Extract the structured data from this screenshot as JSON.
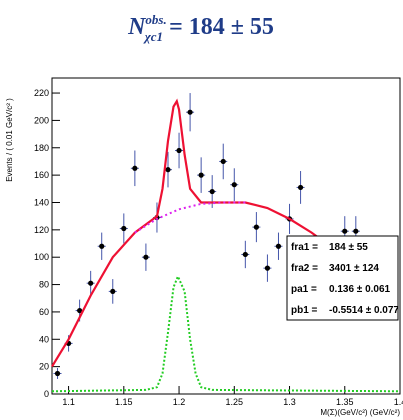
{
  "chart_data": {
    "type": "scatter",
    "title": {
      "base": "N",
      "sup": "obs.",
      "sub": "χc1",
      "rest": "= 184 ± 55"
    },
    "x_label": "M(Σ)(GeV/c²) (GeV/c²)",
    "y_label": "Events / ( 0.01 GeV/c² )",
    "xlim": [
      1.085,
      1.4
    ],
    "ylim": [
      0,
      231
    ],
    "xticks": [
      1.1,
      1.15,
      1.2,
      1.25,
      1.3,
      1.35,
      1.4
    ],
    "yticks": [
      0,
      20,
      40,
      60,
      80,
      100,
      120,
      140,
      160,
      180,
      200,
      220
    ],
    "series": [
      {
        "style": "points",
        "color": "#000000",
        "x": [
          1.09,
          1.1,
          1.11,
          1.12,
          1.13,
          1.14,
          1.15,
          1.16,
          1.17,
          1.18,
          1.19,
          1.2,
          1.21,
          1.22,
          1.23,
          1.24,
          1.25,
          1.26,
          1.27,
          1.28,
          1.29,
          1.3,
          1.31,
          1.32,
          1.33,
          1.34,
          1.35,
          1.36
        ],
        "values": [
          15,
          37,
          61,
          81,
          108,
          75,
          121,
          165,
          100,
          129,
          164,
          178,
          206,
          160,
          148,
          170,
          153,
          102,
          122,
          92,
          108,
          128,
          151,
          105,
          100,
          105,
          119,
          119
        ],
        "errors": [
          4,
          6,
          8,
          9,
          10,
          9,
          11,
          13,
          10,
          11,
          13,
          13,
          14,
          13,
          12,
          13,
          12,
          10,
          11,
          10,
          10,
          11,
          12,
          10,
          10,
          10,
          11,
          11
        ]
      },
      {
        "style": "line",
        "color": "#ee1133",
        "dash": "none",
        "x": [
          1.085,
          1.1,
          1.12,
          1.14,
          1.16,
          1.18,
          1.185,
          1.19,
          1.195,
          1.198,
          1.2,
          1.205,
          1.21,
          1.22,
          1.24,
          1.26,
          1.28,
          1.3,
          1.32,
          1.33
        ],
        "values": [
          20,
          40,
          72,
          100,
          118,
          130,
          150,
          185,
          210,
          214,
          208,
          175,
          150,
          140,
          140,
          140,
          136,
          128,
          118,
          112
        ]
      },
      {
        "style": "line",
        "color": "#dd22ee",
        "dash": "2 3",
        "x": [
          1.16,
          1.18,
          1.2,
          1.22,
          1.24,
          1.26
        ],
        "values": [
          118,
          128,
          135,
          139,
          140,
          140
        ]
      },
      {
        "style": "line",
        "color": "#22cc22",
        "dash": "2 2",
        "x": [
          1.085,
          1.17,
          1.18,
          1.185,
          1.19,
          1.195,
          1.199,
          1.205,
          1.21,
          1.215,
          1.22,
          1.23,
          1.4
        ],
        "values": [
          2,
          3,
          5,
          15,
          45,
          78,
          86,
          75,
          40,
          15,
          5,
          3,
          2
        ]
      }
    ],
    "stat_box": [
      [
        "fra1 =",
        "184 ± 55"
      ],
      [
        "fra2 =",
        "3401 ± 124"
      ],
      [
        "pa1 =",
        "0.136 ± 0.061"
      ],
      [
        "pb1 =",
        "-0.5514 ± 0.077"
      ]
    ]
  }
}
